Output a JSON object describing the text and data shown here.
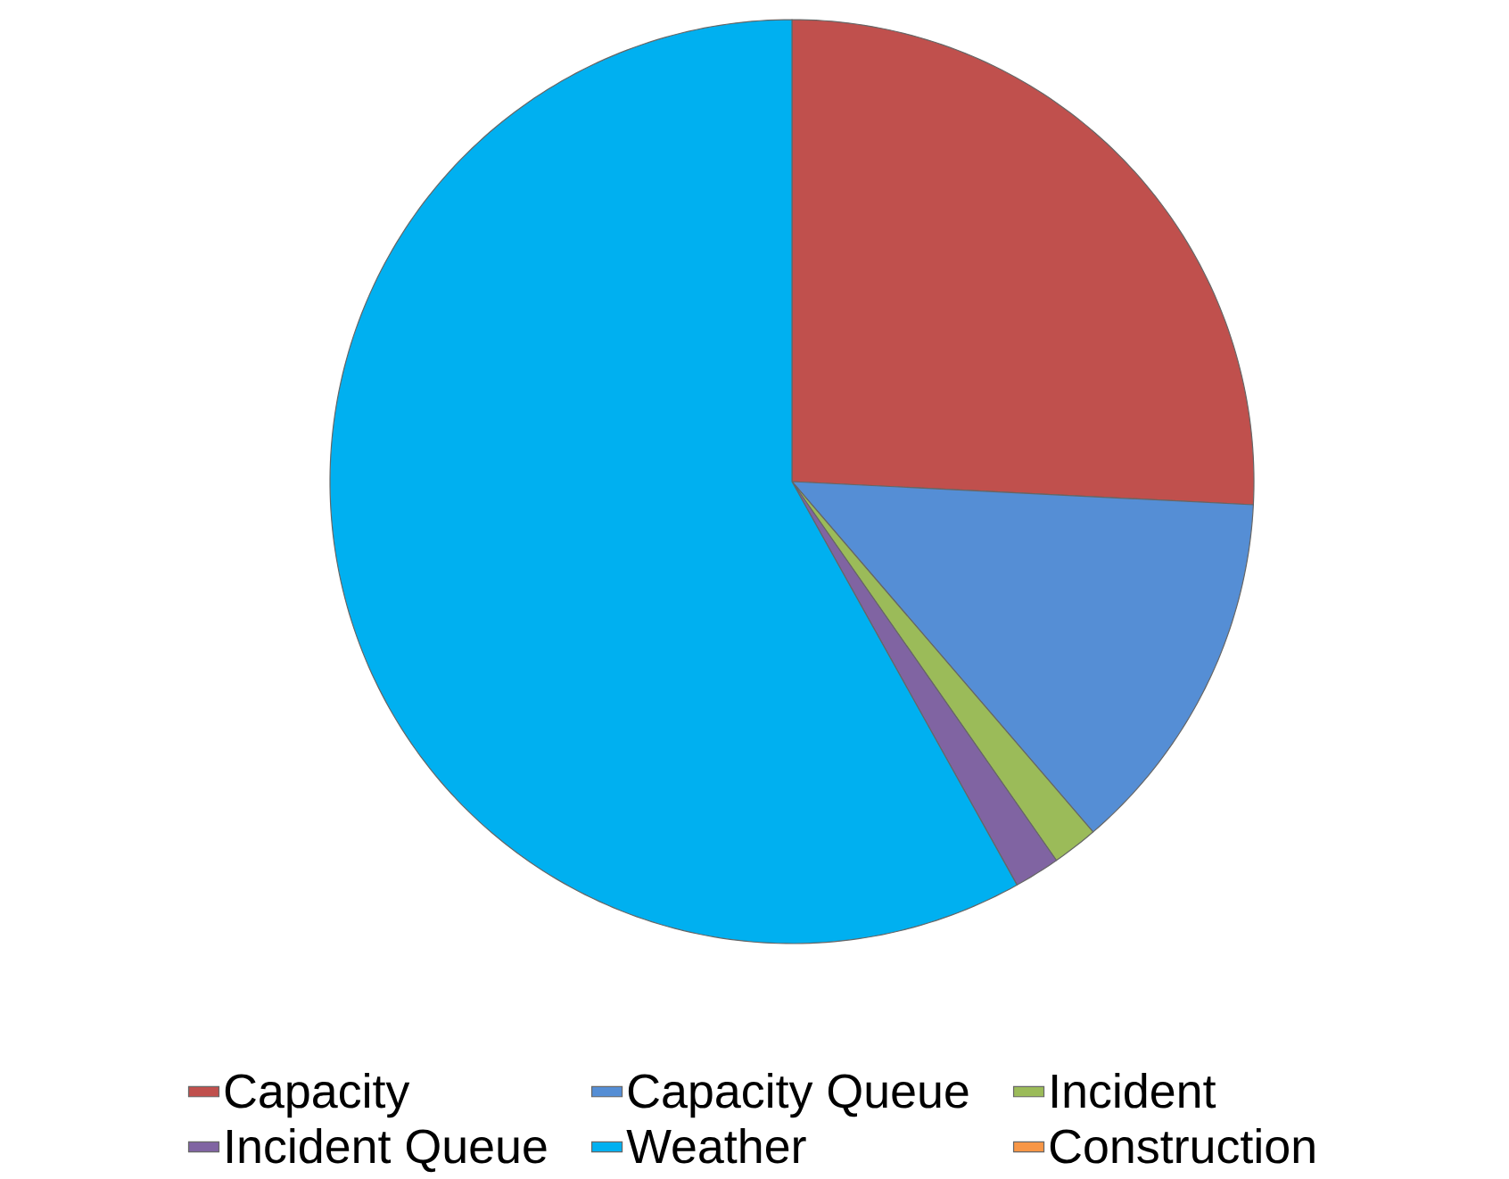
{
  "chart_data": {
    "type": "pie",
    "categories": [
      "Capacity",
      "Capacity Queue",
      "Incident",
      "Incident Queue",
      "Weather",
      "Construction"
    ],
    "values": [
      25.8,
      12.9,
      1.6,
      1.6,
      58.1,
      0
    ],
    "colors": [
      "#c0504d",
      "#558ed5",
      "#9bbb59",
      "#8064a2",
      "#00b0f0",
      "#f79646"
    ],
    "legend": "bottom"
  }
}
